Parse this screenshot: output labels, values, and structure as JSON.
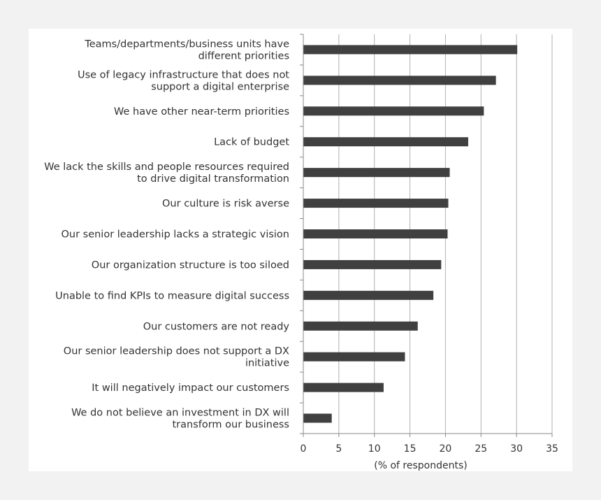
{
  "chart_data": {
    "type": "bar",
    "orientation": "horizontal",
    "categories": [
      [
        "Teams/departments/business units have",
        "different priorities"
      ],
      [
        "Use of legacy infrastructure that does not",
        "support a digital enterprise"
      ],
      [
        "We have other near-term priorities"
      ],
      [
        "Lack of budget"
      ],
      [
        "We lack the skills and people resources required",
        "to drive digital transformation"
      ],
      [
        "Our culture is risk averse"
      ],
      [
        "Our senior leadership lacks a strategic vision"
      ],
      [
        "Our organization structure is too siloed"
      ],
      [
        "Unable to find KPIs to measure digital success"
      ],
      [
        "Our customers are not ready"
      ],
      [
        "Our senior leadership does not support a DX",
        "initiative"
      ],
      [
        "It will negatively impact our customers"
      ],
      [
        "We do not believe an investment in DX will",
        "transform our business"
      ]
    ],
    "values": [
      30.1,
      27.1,
      25.4,
      23.2,
      20.6,
      20.4,
      20.3,
      19.4,
      18.3,
      16.1,
      14.3,
      11.3,
      4.0
    ],
    "xlabel": "(% of respondents)",
    "xlim": [
      0,
      35
    ],
    "xticks": [
      "0",
      "5",
      "10",
      "15",
      "20",
      "25",
      "30",
      "35"
    ],
    "grid": "vertical",
    "bar_color": "#404040",
    "grid_color": "#b0b0b0"
  }
}
